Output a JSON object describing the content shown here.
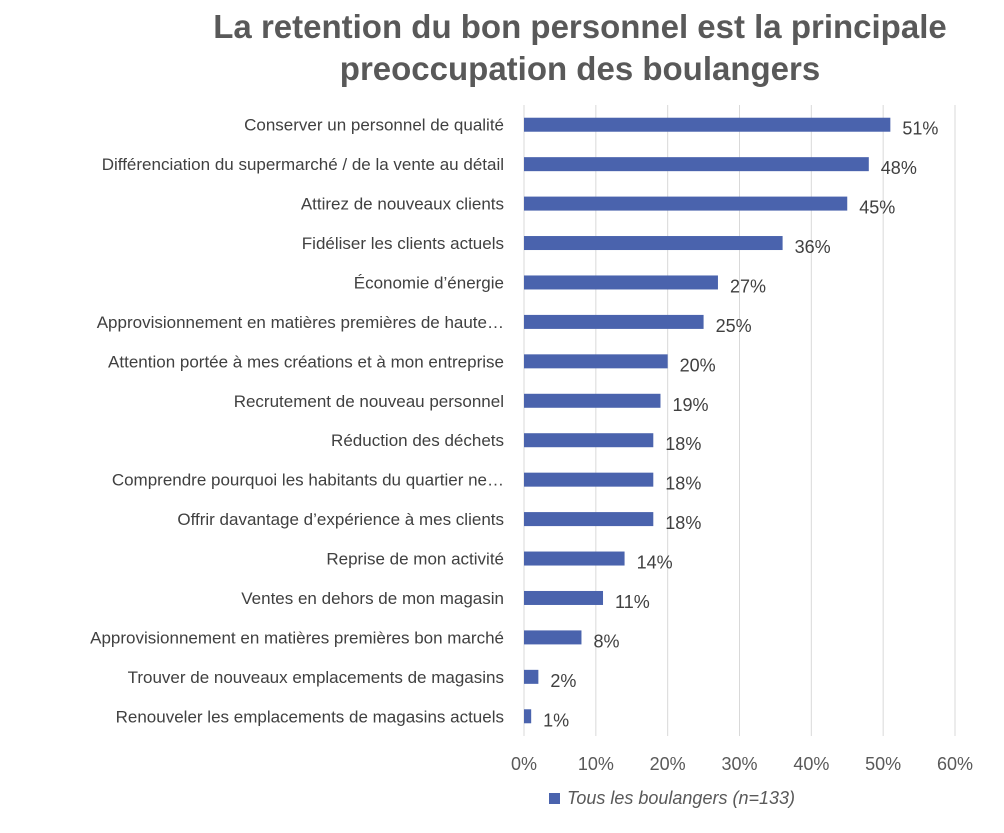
{
  "chart_data": {
    "type": "bar",
    "orientation": "horizontal",
    "title_lines": [
      "La retention du bon personnel est la principale",
      "preoccupation des boulangers"
    ],
    "categories": [
      "Conserver un personnel de qualité",
      "Différenciation du supermarché / de la vente au détail",
      "Attirez de nouveaux clients",
      "Fidéliser les clients actuels",
      "Économie d’énergie",
      "Approvisionnement en matières premières de haute…",
      "Attention portée à mes créations et à mon entreprise",
      "Recrutement de nouveau personnel",
      "Réduction des déchets",
      "Comprendre pourquoi les habitants du quartier ne…",
      "Offrir davantage d’expérience à mes clients",
      "Reprise de mon activité",
      "Ventes en dehors de mon magasin",
      "Approvisionnement en matières premières bon marché",
      "Trouver de nouveaux emplacements de magasins",
      "Renouveler les emplacements de magasins actuels"
    ],
    "series": [
      {
        "name": "Tous les boulangers (n=133)",
        "values": [
          51,
          48,
          45,
          36,
          27,
          25,
          20,
          19,
          18,
          18,
          18,
          14,
          11,
          8,
          2,
          1
        ],
        "value_labels": [
          "51%",
          "48%",
          "45%",
          "36%",
          "27%",
          "25%",
          "20%",
          "19%",
          "18%",
          "18%",
          "18%",
          "14%",
          "11%",
          "8%",
          "2%",
          "1%"
        ]
      }
    ],
    "xlim": [
      0,
      60
    ],
    "x_ticks": [
      "0%",
      "10%",
      "20%",
      "30%",
      "40%",
      "50%",
      "60%"
    ],
    "grid": "vertical",
    "legend_position": "bottom",
    "color": "#4a63ad"
  }
}
